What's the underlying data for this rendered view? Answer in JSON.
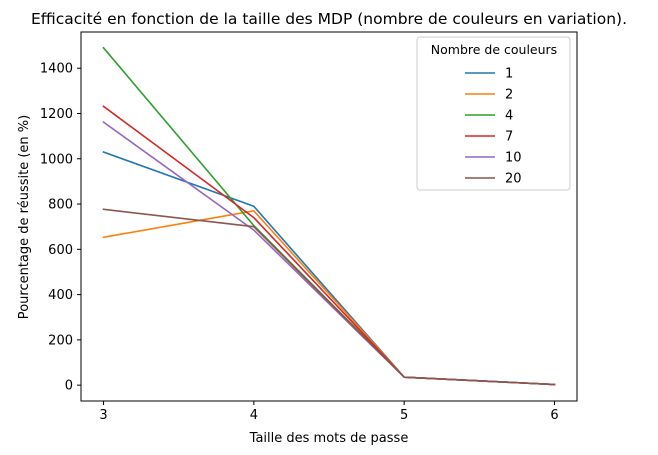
{
  "chart_data": {
    "type": "line",
    "title": "Efficacité en fonction de la taille des MDP (nombre de couleurs en variation).",
    "xlabel": "Taille des mots de passe",
    "ylabel": "Pourcentage de réussite (en %)",
    "x": [
      3,
      4,
      5,
      6
    ],
    "xlim": [
      2.85,
      6.15
    ],
    "ylim": [
      -70,
      1560
    ],
    "xticks": [
      3,
      4,
      5,
      6
    ],
    "yticks": [
      0,
      200,
      400,
      600,
      800,
      1000,
      1200,
      1400
    ],
    "grid": false,
    "legend": {
      "title": "Nombre de couleurs",
      "placement": "top-right"
    },
    "series": [
      {
        "name": "1",
        "color": "#1f77b4",
        "values": [
          1030,
          790,
          35,
          3
        ]
      },
      {
        "name": "2",
        "color": "#ff7f0e",
        "values": [
          653,
          770,
          35,
          3
        ]
      },
      {
        "name": "4",
        "color": "#2ca02c",
        "values": [
          1490,
          705,
          35,
          3
        ]
      },
      {
        "name": "7",
        "color": "#d62728",
        "values": [
          1232,
          740,
          35,
          3
        ]
      },
      {
        "name": "10",
        "color": "#9467bd",
        "values": [
          1162,
          685,
          35,
          3
        ]
      },
      {
        "name": "20",
        "color": "#8c564b",
        "values": [
          777,
          700,
          35,
          3
        ]
      }
    ]
  }
}
